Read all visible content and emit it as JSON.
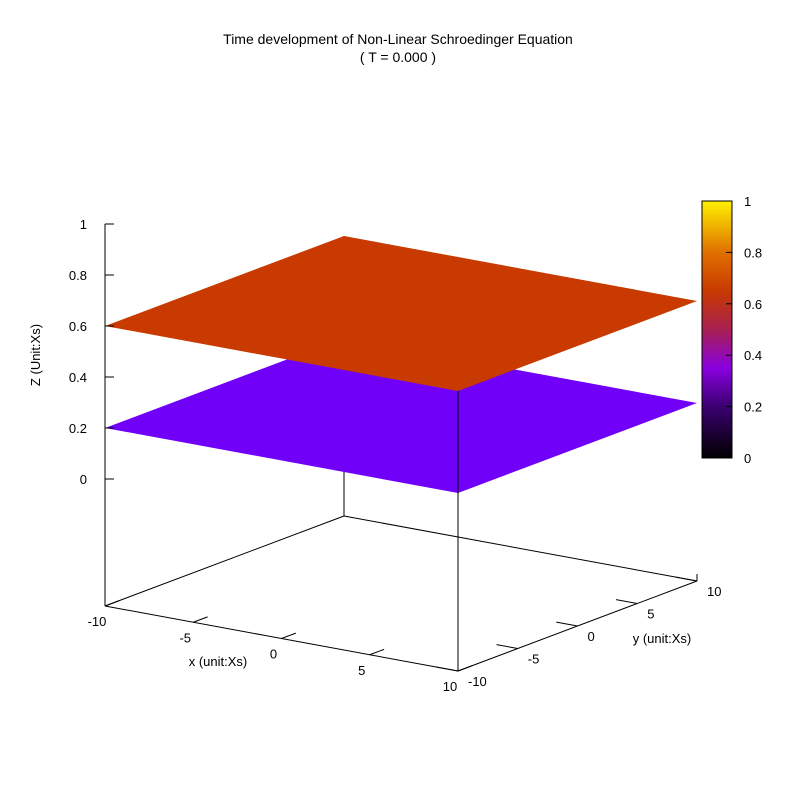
{
  "chart_data": {
    "type": "surface3d",
    "title": "Time development of Non-Linear Schroedinger Equation",
    "subtitle": "( T = 0.000 )",
    "xlabel": "x (unit:Xs)",
    "ylabel": "y (unit:Xs)",
    "zlabel": "Z (Unit:Xs)",
    "xlim": [
      -10,
      10
    ],
    "ylim": [
      -10,
      10
    ],
    "zlim": [
      0,
      1
    ],
    "x_ticks": [
      "-10",
      "-5",
      "0",
      "5",
      "10"
    ],
    "y_ticks": [
      "-10",
      "-5",
      "0",
      "5",
      "10"
    ],
    "z_ticks": [
      "0",
      "0.2",
      "0.4",
      "0.6",
      "0.8",
      "1"
    ],
    "series": [
      {
        "z": 0.6,
        "color": "#c83a00"
      },
      {
        "z": 0.2,
        "color": "#7000f8"
      }
    ],
    "colorbar": {
      "range": [
        0,
        1
      ],
      "ticks": [
        "0",
        "0.2",
        "0.4",
        "0.6",
        "0.8",
        "1"
      ],
      "palette": "black-purple-red-orange-yellow"
    }
  }
}
